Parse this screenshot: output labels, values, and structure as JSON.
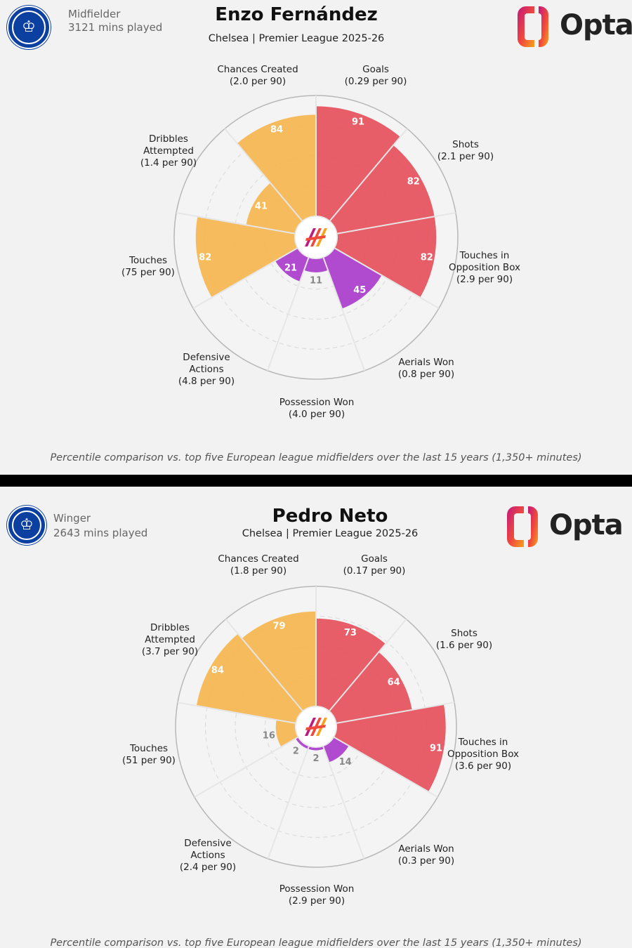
{
  "colors": {
    "attacking": "#e5505c",
    "possession": "#f5b54e",
    "defending": "#a93bcb",
    "background": "#f2f2f2",
    "grid": "#dcdcdc",
    "outer_ring": "#b7b7b7"
  },
  "icons": {
    "club_badge": "chelsea-crest-icon",
    "provider_logo": "opta-logo-icon",
    "center_logo": "opta-flame-icon"
  },
  "provider": {
    "logo_text": "Opta"
  },
  "panels": [
    {
      "role": "Midfielder",
      "minutes": "3121 mins played",
      "player": "Enzo Fernández",
      "subtitle": "Chelsea | Premier League 2025-26",
      "footnote": "Percentile comparison vs. top five European league midfielders over the last 15 years (1,350+ minutes)"
    },
    {
      "role": "Winger",
      "minutes": "2643 mins played",
      "player": "Pedro Neto",
      "subtitle": "Chelsea | Premier League 2025-26",
      "footnote": "Percentile comparison vs. top five European league midfielders over the last 15 years (1,350+ minutes)"
    }
  ],
  "chart_data": [
    {
      "type": "polar_bar",
      "title": "Enzo Fernández",
      "rlim": [
        0,
        100
      ],
      "grid": true,
      "metrics": [
        {
          "label": [
            "Goals",
            "(0.29 per 90)"
          ],
          "percentile": 91,
          "group": "attacking"
        },
        {
          "label": [
            "Shots",
            "(2.1 per 90)"
          ],
          "percentile": 82,
          "group": "attacking"
        },
        {
          "label": [
            "Touches in",
            "Opposition Box",
            "(2.9 per 90)"
          ],
          "percentile": 82,
          "group": "attacking"
        },
        {
          "label": [
            "Aerials Won",
            "(0.8 per 90)"
          ],
          "percentile": 45,
          "group": "defending"
        },
        {
          "label": [
            "Possession Won",
            "(4.0 per 90)"
          ],
          "percentile": 11,
          "group": "defending"
        },
        {
          "label": [
            "Defensive",
            "Actions",
            "(4.8 per 90)"
          ],
          "percentile": 21,
          "group": "defending"
        },
        {
          "label": [
            "Touches",
            "(75 per 90)"
          ],
          "percentile": 82,
          "group": "possession"
        },
        {
          "label": [
            "Dribbles",
            "Attempted",
            "(1.4 per 90)"
          ],
          "percentile": 41,
          "group": "possession"
        },
        {
          "label": [
            "Chances Created",
            "(2.0 per 90)"
          ],
          "percentile": 84,
          "group": "possession"
        }
      ]
    },
    {
      "type": "polar_bar",
      "title": "Pedro Neto",
      "rlim": [
        0,
        100
      ],
      "grid": true,
      "metrics": [
        {
          "label": [
            "Goals",
            "(0.17 per 90)"
          ],
          "percentile": 73,
          "group": "attacking"
        },
        {
          "label": [
            "Shots",
            "(1.6 per 90)"
          ],
          "percentile": 64,
          "group": "attacking"
        },
        {
          "label": [
            "Touches in",
            "Opposition Box",
            "(3.6 per 90)"
          ],
          "percentile": 91,
          "group": "attacking"
        },
        {
          "label": [
            "Aerials Won",
            "(0.3 per 90)"
          ],
          "percentile": 14,
          "group": "defending"
        },
        {
          "label": [
            "Possession Won",
            "(2.9 per 90)"
          ],
          "percentile": 2,
          "group": "defending"
        },
        {
          "label": [
            "Defensive",
            "Actions",
            "(2.4 per 90)"
          ],
          "percentile": 2,
          "group": "defending"
        },
        {
          "label": [
            "Touches",
            "(51 per 90)"
          ],
          "percentile": 16,
          "group": "possession"
        },
        {
          "label": [
            "Dribbles",
            "Attempted",
            "(3.7 per 90)"
          ],
          "percentile": 84,
          "group": "possession"
        },
        {
          "label": [
            "Chances Created",
            "(1.8 per 90)"
          ],
          "percentile": 79,
          "group": "possession"
        }
      ]
    }
  ]
}
